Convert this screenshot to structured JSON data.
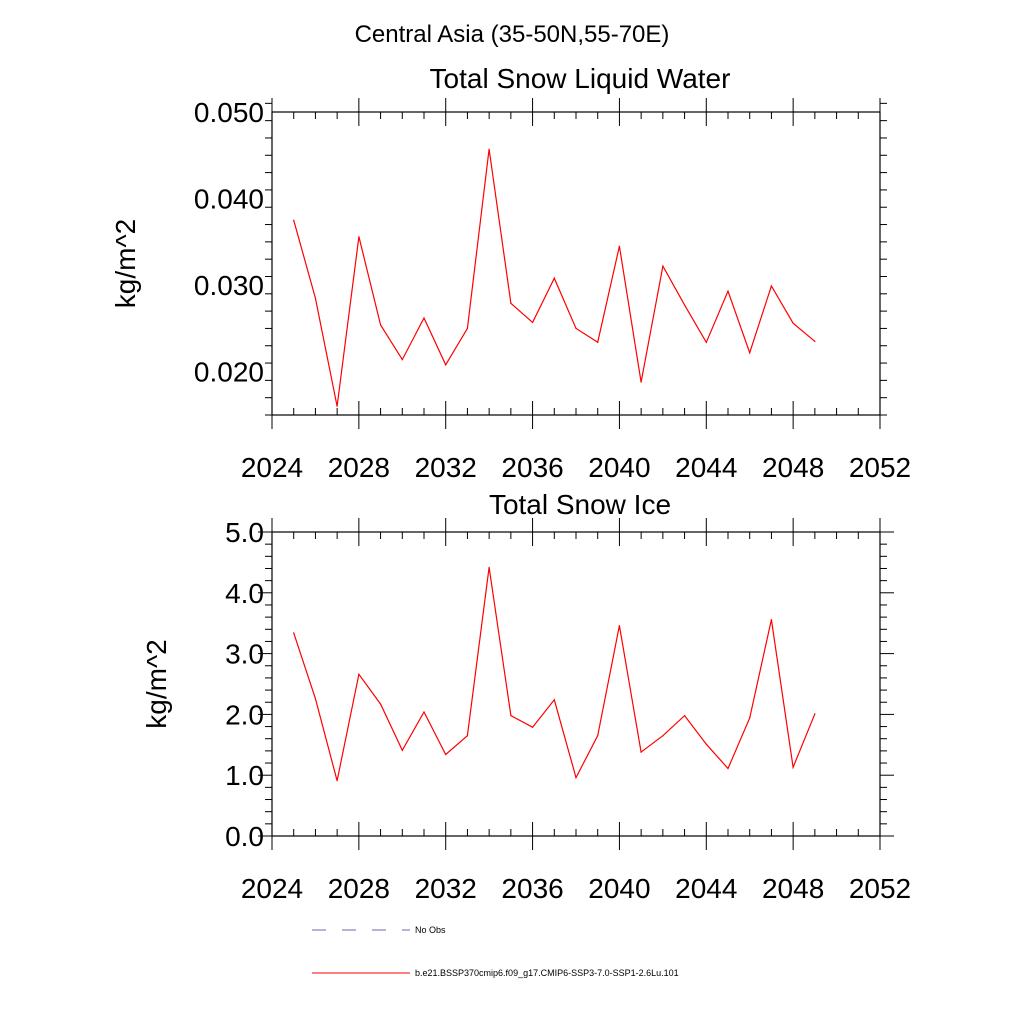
{
  "figure": {
    "title": "Central Asia (35-50N,55-70E)"
  },
  "legend": {
    "entries": [
      {
        "label": "No Obs",
        "color": "#6a6aa8",
        "style": "dashed"
      },
      {
        "label": "b.e21.BSSP370cmip6.f09_g17.CMIP6-SSP3-7.0-SSP1-2.6Lu.101",
        "color": "#ff0000",
        "style": "solid"
      }
    ]
  },
  "chart_data": [
    {
      "type": "line",
      "title": "Total Snow Liquid Water",
      "xlabel": "",
      "ylabel": "kg/m^2",
      "xlim": [
        2024,
        2052
      ],
      "ylim": [
        0.015,
        0.05
      ],
      "xticks": [
        2024,
        2028,
        2032,
        2036,
        2040,
        2044,
        2048,
        2052
      ],
      "yticks": [
        0.02,
        0.03,
        0.04,
        0.05
      ],
      "ytick_labels": [
        "0.020",
        "0.030",
        "0.040",
        "0.050"
      ],
      "grid": false,
      "series": [
        {
          "color": "#ff0000",
          "x": [
            2025,
            2026,
            2027,
            2028,
            2029,
            2030,
            2031,
            2032,
            2033,
            2034,
            2035,
            2036,
            2037,
            2038,
            2039,
            2040,
            2041,
            2042,
            2043,
            2044,
            2045,
            2046,
            2047,
            2048,
            2049
          ],
          "values": [
            0.0375,
            0.0285,
            0.016,
            0.0356,
            0.0254,
            0.0214,
            0.0262,
            0.0208,
            0.025,
            0.0457,
            0.0279,
            0.0257,
            0.0308,
            0.025,
            0.0234,
            0.0345,
            0.0188,
            0.0322,
            0.0277,
            0.0234,
            0.0293,
            0.0222,
            0.0299,
            0.0256,
            0.0235
          ]
        }
      ]
    },
    {
      "type": "line",
      "title": "Total Snow Ice",
      "xlabel": "",
      "ylabel": "kg/m^2",
      "xlim": [
        2024,
        2052
      ],
      "ylim": [
        0,
        5
      ],
      "xticks": [
        2024,
        2028,
        2032,
        2036,
        2040,
        2044,
        2048,
        2052
      ],
      "yticks": [
        0,
        1,
        2,
        3,
        4,
        5
      ],
      "ytick_labels": [
        "0.0",
        "1.0",
        "2.0",
        "3.0",
        "4.0",
        "5.0"
      ],
      "grid": false,
      "series": [
        {
          "color": "#ff0000",
          "x": [
            2025,
            2026,
            2027,
            2028,
            2029,
            2030,
            2031,
            2032,
            2033,
            2034,
            2035,
            2036,
            2037,
            2038,
            2039,
            2040,
            2041,
            2042,
            2043,
            2044,
            2045,
            2046,
            2047,
            2048,
            2049
          ],
          "values": [
            3.34,
            2.26,
            0.91,
            2.66,
            2.17,
            1.41,
            2.04,
            1.34,
            1.65,
            4.42,
            1.98,
            1.79,
            2.24,
            0.96,
            1.65,
            3.46,
            1.38,
            1.65,
            1.98,
            1.51,
            1.11,
            1.94,
            3.56,
            1.13,
            2.01
          ]
        }
      ]
    }
  ]
}
